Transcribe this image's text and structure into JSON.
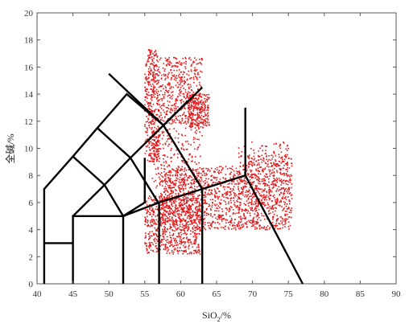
{
  "chart_data": {
    "type": "scatter",
    "xlabel": "SiO",
    "xlabel_sub": "2",
    "xlabel_suffix": "/%",
    "ylabel": "全碱/%",
    "xlim": [
      40,
      90
    ],
    "ylim": [
      0,
      20
    ],
    "xticks": [
      40,
      45,
      50,
      55,
      60,
      65,
      70,
      75,
      80,
      85,
      90
    ],
    "yticks": [
      0,
      2,
      4,
      6,
      8,
      10,
      12,
      14,
      16,
      18,
      20
    ],
    "grid": false,
    "point_color": "#e31a1c",
    "line_color": "#000000",
    "tas_boundaries": [
      [
        [
          41,
          0
        ],
        [
          41,
          7
        ],
        [
          45,
          9.4
        ],
        [
          48.4,
          11.5
        ],
        [
          52.5,
          14
        ],
        [
          57.6,
          11.7
        ],
        [
          63,
          14.5
        ]
      ],
      [
        [
          41,
          3
        ],
        [
          45,
          3
        ]
      ],
      [
        [
          45,
          0
        ],
        [
          45,
          5
        ],
        [
          52,
          5
        ],
        [
          57,
          6
        ],
        [
          63,
          7
        ],
        [
          69,
          8
        ],
        [
          77,
          0
        ]
      ],
      [
        [
          52,
          0
        ],
        [
          52,
          5
        ]
      ],
      [
        [
          57,
          0
        ],
        [
          57,
          6
        ]
      ],
      [
        [
          63,
          0
        ],
        [
          63,
          7
        ]
      ],
      [
        [
          45,
          5
        ],
        [
          49.4,
          7.3
        ],
        [
          53,
          9.3
        ],
        [
          57.6,
          11.7
        ],
        [
          61,
          13.5
        ]
      ],
      [
        [
          48.4,
          11.5
        ],
        [
          53,
          9.3
        ],
        [
          57,
          5.9
        ]
      ],
      [
        [
          49.4,
          7.3
        ],
        [
          45,
          9.4
        ]
      ],
      [
        [
          49.4,
          7.3
        ],
        [
          52,
          5
        ]
      ],
      [
        [
          50,
          15.5
        ],
        [
          57.6,
          11.7
        ]
      ],
      [
        [
          52,
          5
        ],
        [
          55,
          6
        ],
        [
          55,
          9.3
        ]
      ],
      [
        [
          57.6,
          11.7
        ],
        [
          63,
          7
        ]
      ],
      [
        [
          69,
          8
        ],
        [
          69,
          13
        ]
      ]
    ],
    "scatter_clusters": [
      {
        "x": [
          55,
          57
        ],
        "y": [
          9,
          17.3
        ],
        "n": 400
      },
      {
        "x": [
          57,
          63
        ],
        "y": [
          11.8,
          16.7
        ],
        "n": 450
      },
      {
        "x": [
          61,
          64
        ],
        "y": [
          11.5,
          14
        ],
        "n": 250
      },
      {
        "x": [
          56,
          63
        ],
        "y": [
          7,
          11.5
        ],
        "n": 250
      },
      {
        "x": [
          55,
          63
        ],
        "y": [
          2.2,
          6.5
        ],
        "n": 700
      },
      {
        "x": [
          57,
          63
        ],
        "y": [
          4,
          8.5
        ],
        "n": 500
      },
      {
        "x": [
          63,
          69
        ],
        "y": [
          4,
          8.7
        ],
        "n": 500
      },
      {
        "x": [
          69,
          75.5
        ],
        "y": [
          4,
          9.5
        ],
        "n": 600
      },
      {
        "x": [
          68,
          75
        ],
        "y": [
          5.5,
          10.5
        ],
        "n": 200
      }
    ]
  }
}
